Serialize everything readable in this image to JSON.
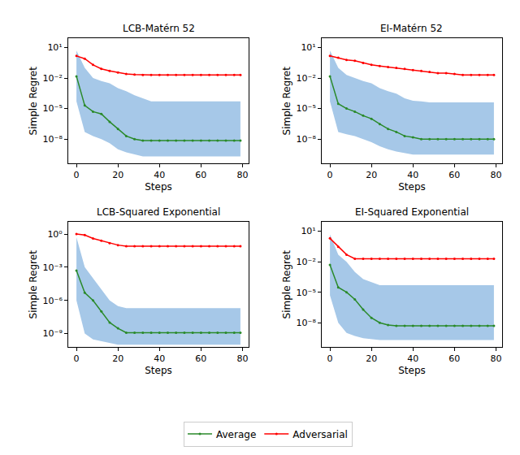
{
  "chart_data": [
    {
      "type": "line",
      "title": "LCB-Matérn 52",
      "x_label": "Steps",
      "y_label": "Simple Regret",
      "log": "y",
      "legend": "bottom",
      "grid": false,
      "marker": "circle",
      "line_style": "solid",
      "xlim": [
        -3.95,
        82.95
      ],
      "xticks": [
        0,
        20,
        40,
        60,
        80
      ],
      "ylim": [
        4e-11,
        80
      ],
      "yticks": [
        {
          "value": 10,
          "label": "10¹"
        },
        {
          "value": 0.01,
          "label": "10⁻²"
        },
        {
          "value": 1e-05,
          "label": "10⁻⁵"
        },
        {
          "value": 1e-08,
          "label": "10⁻⁸"
        }
      ],
      "x": [
        0,
        4,
        8,
        12,
        16,
        20,
        24,
        28,
        32,
        36,
        40,
        44,
        48,
        52,
        56,
        60,
        64,
        68,
        72,
        76,
        79
      ],
      "band": {
        "color": "#a6c8e8",
        "upper": [
          5,
          0.1,
          0.01,
          0.005,
          0.003,
          0.001,
          0.0005,
          0.0002,
          0.0001,
          5e-05,
          5e-05,
          5e-05,
          5e-05,
          5e-05,
          5e-05,
          5e-05,
          5e-05,
          5e-05,
          5e-05,
          5e-05,
          5e-05
        ],
        "lower": [
          5e-05,
          5e-08,
          2e-08,
          1e-08,
          4e-09,
          1e-09,
          5e-10,
          3e-10,
          2e-10,
          2e-10,
          2e-10,
          2e-10,
          2e-10,
          2e-10,
          2e-10,
          2e-10,
          2e-10,
          2e-10,
          2e-10,
          2e-10,
          2e-10
        ]
      },
      "series": [
        {
          "name": "Average",
          "color": "#2a8a2a",
          "values": [
            0.015,
            2e-05,
            5e-06,
            3e-06,
            5e-07,
            1e-07,
            2e-08,
            1e-08,
            7e-09,
            7e-09,
            7e-09,
            7e-09,
            7e-09,
            7e-09,
            7e-09,
            7e-09,
            7e-09,
            7e-09,
            7e-09,
            7e-09,
            7e-09
          ]
        },
        {
          "name": "Adversarial",
          "color": "#ff0000",
          "values": [
            1.5,
            0.8,
            0.2,
            0.08,
            0.05,
            0.035,
            0.025,
            0.022,
            0.02,
            0.02,
            0.02,
            0.02,
            0.02,
            0.02,
            0.02,
            0.02,
            0.02,
            0.02,
            0.02,
            0.02,
            0.02
          ]
        }
      ]
    },
    {
      "type": "line",
      "title": "EI-Matérn 52",
      "x_label": "Steps",
      "y_label": "Simple Regret",
      "log": "y",
      "legend": "bottom",
      "grid": false,
      "marker": "circle",
      "line_style": "solid",
      "xlim": [
        -3.95,
        82.95
      ],
      "xticks": [
        0,
        20,
        40,
        60,
        80
      ],
      "ylim": [
        4e-11,
        80
      ],
      "yticks": [
        {
          "value": 10,
          "label": "10¹"
        },
        {
          "value": 0.01,
          "label": "10⁻²"
        },
        {
          "value": 1e-05,
          "label": "10⁻⁵"
        },
        {
          "value": 1e-08,
          "label": "10⁻⁸"
        }
      ],
      "x": [
        0,
        4,
        8,
        12,
        16,
        20,
        24,
        28,
        32,
        36,
        40,
        44,
        48,
        52,
        56,
        60,
        64,
        68,
        72,
        76,
        79
      ],
      "band": {
        "color": "#a6c8e8",
        "upper": [
          5,
          0.1,
          0.02,
          0.01,
          0.005,
          0.003,
          0.001,
          0.0005,
          0.0003,
          0.0001,
          6e-05,
          5e-05,
          4e-05,
          4e-05,
          4e-05,
          4e-05,
          4e-05,
          4e-05,
          4e-05,
          4e-05,
          4e-05
        ],
        "lower": [
          5e-05,
          5e-08,
          3e-08,
          2e-08,
          1e-08,
          5e-09,
          2e-09,
          1e-09,
          6e-10,
          4e-10,
          3e-10,
          3e-10,
          3e-10,
          3e-10,
          3e-10,
          3e-10,
          3e-10,
          3e-10,
          3e-10,
          3e-10,
          3e-10
        ]
      },
      "series": [
        {
          "name": "Average",
          "color": "#2a8a2a",
          "values": [
            0.015,
            3e-05,
            1e-05,
            5e-06,
            2e-06,
            1e-06,
            3e-07,
            1e-07,
            5e-08,
            2e-08,
            1.5e-08,
            1e-08,
            1e-08,
            1e-08,
            1e-08,
            1e-08,
            1e-08,
            1e-08,
            1e-08,
            1e-08,
            1e-08
          ]
        },
        {
          "name": "Adversarial",
          "color": "#ff0000",
          "values": [
            1.5,
            1,
            0.6,
            0.5,
            0.3,
            0.2,
            0.15,
            0.12,
            0.1,
            0.08,
            0.06,
            0.05,
            0.04,
            0.03,
            0.03,
            0.025,
            0.02,
            0.02,
            0.02,
            0.02,
            0.02
          ]
        }
      ]
    },
    {
      "type": "line",
      "title": "LCB-Squared Exponential",
      "x_label": "Steps",
      "y_label": "Simple Regret",
      "log": "y",
      "legend": "bottom",
      "grid": false,
      "marker": "circle",
      "line_style": "solid",
      "xlim": [
        -3.95,
        82.95
      ],
      "xticks": [
        0,
        20,
        40,
        60,
        80
      ],
      "ylim": [
        6e-11,
        12
      ],
      "yticks": [
        {
          "value": 1,
          "label": "10⁰"
        },
        {
          "value": 0.001,
          "label": "10⁻³"
        },
        {
          "value": 1e-06,
          "label": "10⁻⁶"
        },
        {
          "value": 1e-09,
          "label": "10⁻⁹"
        }
      ],
      "x": [
        0,
        4,
        8,
        12,
        16,
        20,
        24,
        28,
        32,
        36,
        40,
        44,
        48,
        52,
        56,
        60,
        64,
        68,
        72,
        76,
        79
      ],
      "band": {
        "color": "#a6c8e8",
        "upper": [
          0.5,
          0.001,
          0.0001,
          1e-05,
          1e-06,
          3e-07,
          2e-07,
          2e-07,
          2e-07,
          2e-07,
          2e-07,
          2e-07,
          2e-07,
          2e-07,
          2e-07,
          2e-07,
          2e-07,
          2e-07,
          2e-07,
          2e-07,
          2e-07
        ],
        "lower": [
          1e-06,
          1e-09,
          3e-10,
          2e-10,
          1.5e-10,
          1e-10,
          1e-10,
          1e-10,
          1e-10,
          1e-10,
          1e-10,
          1e-10,
          1e-10,
          1e-10,
          1e-10,
          1e-10,
          1e-10,
          1e-10,
          1e-10,
          1e-10,
          1e-10
        ]
      },
      "series": [
        {
          "name": "Average",
          "color": "#2a8a2a",
          "values": [
            0.0005,
            5e-06,
            1e-06,
            1e-07,
            1e-08,
            3e-09,
            1.2e-09,
            1.2e-09,
            1.2e-09,
            1.2e-09,
            1.2e-09,
            1.2e-09,
            1.2e-09,
            1.2e-09,
            1.2e-09,
            1.2e-09,
            1.2e-09,
            1.2e-09,
            1.2e-09,
            1.2e-09,
            1.2e-09
          ]
        },
        {
          "name": "Adversarial",
          "color": "#ff0000",
          "values": [
            1,
            0.8,
            0.4,
            0.25,
            0.15,
            0.1,
            0.08,
            0.08,
            0.08,
            0.08,
            0.08,
            0.08,
            0.08,
            0.08,
            0.08,
            0.08,
            0.08,
            0.08,
            0.08,
            0.08,
            0.08
          ]
        }
      ]
    },
    {
      "type": "line",
      "title": "EI-Squared Exponential",
      "x_label": "Steps",
      "y_label": "Simple Regret",
      "log": "y",
      "legend": "bottom",
      "grid": false,
      "marker": "circle",
      "line_style": "solid",
      "xlim": [
        -3.95,
        82.95
      ],
      "xticks": [
        0,
        20,
        40,
        60,
        80
      ],
      "ylim": [
        4e-11,
        80
      ],
      "yticks": [
        {
          "value": 10,
          "label": "10¹"
        },
        {
          "value": 0.01,
          "label": "10⁻²"
        },
        {
          "value": 1e-05,
          "label": "10⁻⁵"
        },
        {
          "value": 1e-08,
          "label": "10⁻⁸"
        }
      ],
      "x": [
        0,
        4,
        8,
        12,
        16,
        20,
        24,
        28,
        32,
        36,
        40,
        44,
        48,
        52,
        56,
        60,
        64,
        68,
        72,
        76,
        79
      ],
      "band": {
        "color": "#a6c8e8",
        "upper": [
          5,
          0.05,
          0.01,
          0.001,
          0.0002,
          0.0001,
          5e-05,
          5e-05,
          5e-05,
          5e-05,
          5e-05,
          5e-05,
          5e-05,
          5e-05,
          5e-05,
          5e-05,
          5e-05,
          5e-05,
          5e-05,
          5e-05,
          5e-05
        ],
        "lower": [
          5e-06,
          1e-08,
          1e-09,
          5e-10,
          3e-10,
          2.5e-10,
          2e-10,
          2e-10,
          2e-10,
          2e-10,
          2e-10,
          2e-10,
          2e-10,
          2e-10,
          2e-10,
          2e-10,
          2e-10,
          2e-10,
          2e-10,
          2e-10,
          2e-10
        ]
      },
      "series": [
        {
          "name": "Average",
          "color": "#2a8a2a",
          "values": [
            0.005,
            3e-05,
            1e-05,
            2e-06,
            2e-07,
            3e-08,
            1e-08,
            6e-09,
            5e-09,
            5e-09,
            5e-09,
            5e-09,
            5e-09,
            5e-09,
            5e-09,
            5e-09,
            5e-09,
            5e-09,
            5e-09,
            5e-09,
            5e-09
          ]
        },
        {
          "name": "Adversarial",
          "color": "#ff0000",
          "values": [
            2,
            0.3,
            0.05,
            0.02,
            0.02,
            0.02,
            0.02,
            0.02,
            0.02,
            0.02,
            0.02,
            0.02,
            0.02,
            0.02,
            0.02,
            0.02,
            0.02,
            0.02,
            0.02,
            0.02,
            0.02
          ]
        }
      ]
    }
  ]
}
